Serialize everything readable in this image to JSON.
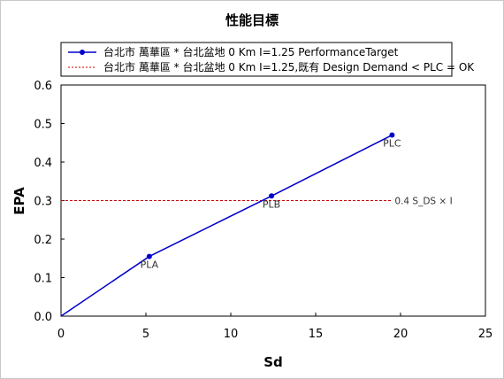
{
  "chart_data": {
    "type": "line",
    "title": "性能目標",
    "xlabel": "Sd",
    "ylabel": "EPA",
    "xlim": [
      0,
      25
    ],
    "ylim": [
      0,
      0.6
    ],
    "xticks": [
      "0",
      "5",
      "10",
      "15",
      "20",
      "25"
    ],
    "yticks": [
      "0.0",
      "0.1",
      "0.2",
      "0.3",
      "0.4",
      "0.5",
      "0.6"
    ],
    "grid": false,
    "legend_position": "top",
    "series": [
      {
        "name": "台北市 萬華區 * 台北盆地 0 Km  I=1.25  PerformanceTarget",
        "color": "#0000cc",
        "style": "solid",
        "x": [
          0,
          5.2,
          12.4,
          19.5
        ],
        "y": [
          0,
          0.155,
          0.312,
          0.47
        ],
        "markers": [
          {
            "x": 5.2,
            "y": 0.155,
            "label": "PLA"
          },
          {
            "x": 12.4,
            "y": 0.312,
            "label": "PLB"
          },
          {
            "x": 19.5,
            "y": 0.47,
            "label": "PLC"
          }
        ]
      },
      {
        "name": "台北市 萬華區 * 台北盆地 0 Km  I=1.25,既有 Design Demand < PLC = OK",
        "color": "#cc0000",
        "style": "dashed",
        "x": [
          0,
          19.5
        ],
        "y": [
          0.3,
          0.3
        ],
        "label": "0.4 S_DS × I"
      }
    ]
  }
}
